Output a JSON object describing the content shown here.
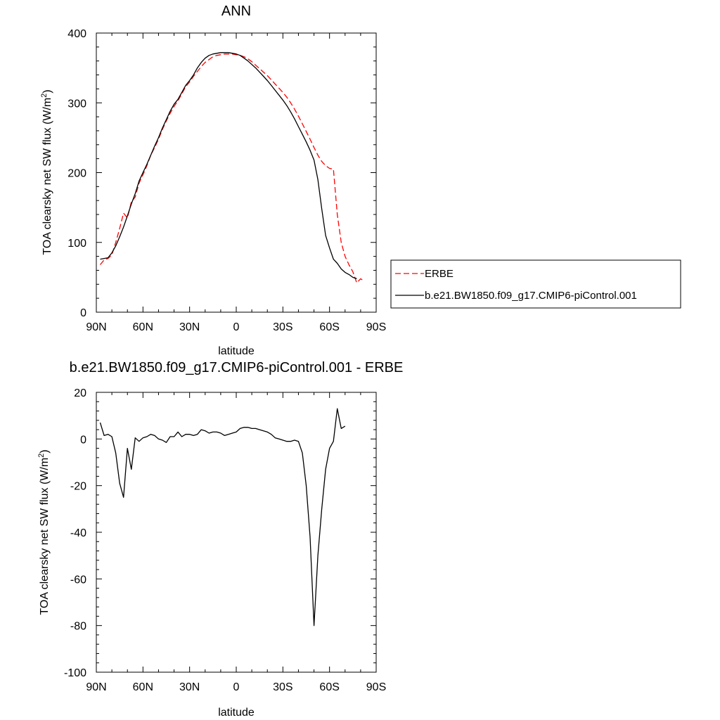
{
  "chart_data": [
    {
      "type": "line",
      "title": "ANN",
      "xlabel": "latitude",
      "ylabel": "TOA clearsky net SW flux (W/m",
      "ylabel_sup": "2",
      "ylabel_end": ")",
      "xlim": [
        90,
        -90
      ],
      "ylim": [
        0,
        400
      ],
      "xticks": [
        90,
        60,
        30,
        0,
        -30,
        -60,
        -90
      ],
      "xtick_labels": [
        "90N",
        "60N",
        "30N",
        "0",
        "30S",
        "60S",
        "90S"
      ],
      "yticks": [
        0,
        100,
        200,
        300,
        400
      ],
      "ytick_labels": [
        "0",
        "100",
        "200",
        "300",
        "400"
      ],
      "legend_position": "right",
      "series": [
        {
          "name": "ERBE",
          "color": "#ff0000",
          "style": "dashed",
          "points": [
            [
              87.5,
              68
            ],
            [
              85,
              75
            ],
            [
              82.5,
              77
            ],
            [
              80,
              82
            ],
            [
              77.5,
              100
            ],
            [
              75,
              120
            ],
            [
              72.5,
              142
            ],
            [
              70,
              135
            ],
            [
              67.5,
              158
            ],
            [
              65,
              165
            ],
            [
              62.5,
              185
            ],
            [
              60,
              197
            ],
            [
              57.5,
              210
            ],
            [
              55,
              225
            ],
            [
              52.5,
              236
            ],
            [
              50,
              248
            ],
            [
              47.5,
              262
            ],
            [
              45,
              274
            ],
            [
              42.5,
              285
            ],
            [
              40,
              295
            ],
            [
              37.5,
              303
            ],
            [
              35,
              313
            ],
            [
              32.5,
              323
            ],
            [
              30,
              330
            ],
            [
              27.5,
              338
            ],
            [
              25,
              345
            ],
            [
              22.5,
              352
            ],
            [
              20,
              358
            ],
            [
              17.5,
              362
            ],
            [
              15,
              366
            ],
            [
              12.5,
              368
            ],
            [
              10,
              369
            ],
            [
              7.5,
              370
            ],
            [
              5,
              370
            ],
            [
              2.5,
              370
            ],
            [
              0,
              369
            ],
            [
              -2.5,
              368
            ],
            [
              -5,
              366
            ],
            [
              -7.5,
              363
            ],
            [
              -10,
              359
            ],
            [
              -12.5,
              354
            ],
            [
              -15,
              349
            ],
            [
              -17.5,
              344
            ],
            [
              -20,
              339
            ],
            [
              -22.5,
              333
            ],
            [
              -25,
              327
            ],
            [
              -27.5,
              321
            ],
            [
              -30,
              315
            ],
            [
              -32.5,
              308
            ],
            [
              -35,
              300
            ],
            [
              -37.5,
              291
            ],
            [
              -40,
              281
            ],
            [
              -42.5,
              270
            ],
            [
              -45,
              259
            ],
            [
              -47.5,
              248
            ],
            [
              -50,
              236
            ],
            [
              -52.5,
              225
            ],
            [
              -55,
              216
            ],
            [
              -57.5,
              210
            ],
            [
              -60,
              206
            ],
            [
              -62.5,
              205
            ],
            [
              -65,
              140
            ],
            [
              -67.5,
              100
            ],
            [
              -70,
              80
            ],
            [
              -72.5,
              68
            ],
            [
              -75,
              58
            ],
            [
              -77.5,
              42
            ],
            [
              -80,
              48
            ],
            [
              -82.5,
              44
            ]
          ]
        },
        {
          "name": "b.e21.BW1850.f09_g17.CMIP6-piControl.001",
          "color": "#000000",
          "style": "solid",
          "points": [
            [
              87.5,
              76
            ],
            [
              85,
              77
            ],
            [
              82.5,
              78
            ],
            [
              80,
              85
            ],
            [
              77.5,
              95
            ],
            [
              75,
              108
            ],
            [
              72.5,
              122
            ],
            [
              70,
              138
            ],
            [
              67.5,
              155
            ],
            [
              65,
              170
            ],
            [
              62.5,
              188
            ],
            [
              60,
              200
            ],
            [
              57.5,
              212
            ],
            [
              55,
              225
            ],
            [
              52.5,
              238
            ],
            [
              50,
              250
            ],
            [
              47.5,
              264
            ],
            [
              45,
              276
            ],
            [
              42.5,
              288
            ],
            [
              40,
              298
            ],
            [
              37.5,
              305
            ],
            [
              35,
              315
            ],
            [
              32.5,
              325
            ],
            [
              30,
              332
            ],
            [
              27.5,
              340
            ],
            [
              25,
              350
            ],
            [
              22.5,
              358
            ],
            [
              20,
              364
            ],
            [
              17.5,
              368
            ],
            [
              15,
              370
            ],
            [
              12.5,
              371
            ],
            [
              10,
              372
            ],
            [
              7.5,
              372
            ],
            [
              5,
              372
            ],
            [
              2.5,
              371
            ],
            [
              0,
              370
            ],
            [
              -2.5,
              368
            ],
            [
              -5,
              364
            ],
            [
              -7.5,
              360
            ],
            [
              -10,
              355
            ],
            [
              -12.5,
              350
            ],
            [
              -15,
              344
            ],
            [
              -17.5,
              338
            ],
            [
              -20,
              332
            ],
            [
              -22.5,
              325
            ],
            [
              -25,
              318
            ],
            [
              -27.5,
              311
            ],
            [
              -30,
              304
            ],
            [
              -32.5,
              296
            ],
            [
              -35,
              287
            ],
            [
              -37.5,
              277
            ],
            [
              -40,
              266
            ],
            [
              -42.5,
              255
            ],
            [
              -45,
              244
            ],
            [
              -47.5,
              232
            ],
            [
              -50,
              218
            ],
            [
              -52.5,
              190
            ],
            [
              -55,
              148
            ],
            [
              -57.5,
              110
            ],
            [
              -60,
              92
            ],
            [
              -62.5,
              76
            ],
            [
              -65,
              70
            ],
            [
              -67.5,
              62
            ],
            [
              -70,
              57
            ],
            [
              -72.5,
              54
            ],
            [
              -75,
              50
            ],
            [
              -77.5,
              48
            ]
          ]
        }
      ]
    },
    {
      "type": "line",
      "title": "b.e21.BW1850.f09_g17.CMIP6-piControl.001 - ERBE",
      "xlabel": "latitude",
      "ylabel": "TOA clearsky net SW flux (W/m",
      "ylabel_sup": "2",
      "ylabel_end": ")",
      "xlim": [
        90,
        -90
      ],
      "ylim": [
        -100,
        20
      ],
      "xticks": [
        90,
        60,
        30,
        0,
        -30,
        -60,
        -90
      ],
      "xtick_labels": [
        "90N",
        "60N",
        "30N",
        "0",
        "30S",
        "60S",
        "90S"
      ],
      "yticks": [
        -100,
        -80,
        -60,
        -40,
        -20,
        0,
        20
      ],
      "ytick_labels": [
        "-100",
        "-80",
        "-60",
        "-40",
        "-20",
        "0",
        "20"
      ],
      "series": [
        {
          "color": "#000000",
          "style": "solid",
          "points": [
            [
              87.5,
              7
            ],
            [
              85,
              1.5
            ],
            [
              82.5,
              2
            ],
            [
              80,
              1
            ],
            [
              77.5,
              -6
            ],
            [
              75,
              -19
            ],
            [
              72.5,
              -25
            ],
            [
              70,
              -4
            ],
            [
              67.5,
              -13
            ],
            [
              65,
              0.5
            ],
            [
              62.5,
              -1
            ],
            [
              60,
              0.5
            ],
            [
              57.5,
              1
            ],
            [
              55,
              2
            ],
            [
              52.5,
              1.5
            ],
            [
              50,
              0
            ],
            [
              47.5,
              -0.5
            ],
            [
              45,
              -1.5
            ],
            [
              42.5,
              1
            ],
            [
              40,
              1
            ],
            [
              37.5,
              3
            ],
            [
              35,
              1
            ],
            [
              32.5,
              2
            ],
            [
              30,
              2
            ],
            [
              27.5,
              1.5
            ],
            [
              25,
              2
            ],
            [
              22.5,
              4
            ],
            [
              20,
              3.5
            ],
            [
              17.5,
              2.5
            ],
            [
              15,
              3
            ],
            [
              12.5,
              3
            ],
            [
              10,
              2.5
            ],
            [
              7.5,
              1.5
            ],
            [
              5,
              2
            ],
            [
              2.5,
              2.5
            ],
            [
              0,
              3
            ],
            [
              -2.5,
              4.5
            ],
            [
              -5,
              5
            ],
            [
              -7.5,
              5
            ],
            [
              -10,
              4.5
            ],
            [
              -12.5,
              4.5
            ],
            [
              -15,
              4
            ],
            [
              -17.5,
              3.5
            ],
            [
              -20,
              3
            ],
            [
              -22.5,
              2
            ],
            [
              -25,
              0.5
            ],
            [
              -27.5,
              0
            ],
            [
              -30,
              -0.5
            ],
            [
              -32.5,
              -1
            ],
            [
              -35,
              -1
            ],
            [
              -37.5,
              -0.5
            ],
            [
              -40,
              -1
            ],
            [
              -42.5,
              -6
            ],
            [
              -45,
              -20
            ],
            [
              -47.5,
              -42
            ],
            [
              -50,
              -80
            ],
            [
              -52.5,
              -50
            ],
            [
              -55,
              -30
            ],
            [
              -57.5,
              -13
            ],
            [
              -60,
              -4
            ],
            [
              -62.5,
              -1
            ],
            [
              -65,
              13
            ],
            [
              -67.5,
              4.5
            ],
            [
              -70,
              5.5
            ]
          ]
        }
      ]
    }
  ]
}
